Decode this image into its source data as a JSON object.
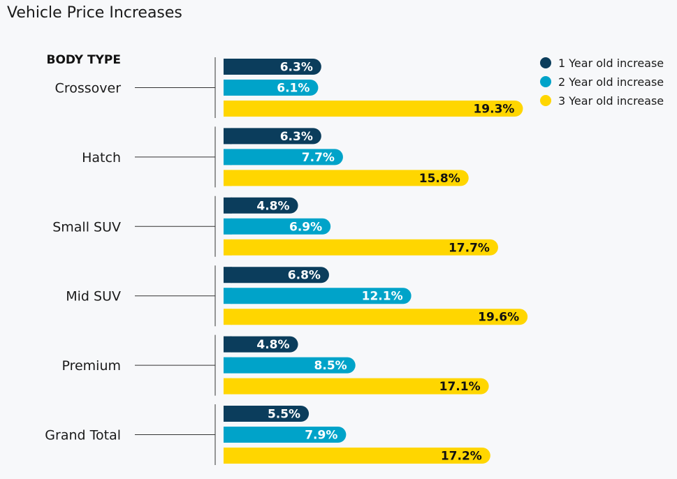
{
  "chart_data": {
    "type": "bar",
    "orientation": "horizontal",
    "title": "Vehicle Price Increases",
    "group_heading": "BODY TYPE",
    "categories": [
      "Crossover",
      "Hatch",
      "Small SUV",
      "Mid SUV",
      "Premium",
      "Grand Total"
    ],
    "series": [
      {
        "name": "1 Year old increase",
        "color": "#0b3d5c",
        "label_color": "#ffffff",
        "values": [
          6.3,
          6.3,
          4.8,
          6.8,
          4.8,
          5.5
        ],
        "labels": [
          "6.3%",
          "6.3%",
          "4.8%",
          "6.8%",
          "4.8%",
          "5.5%"
        ]
      },
      {
        "name": "2 Year old increase",
        "color": "#00a3c9",
        "label_color": "#ffffff",
        "values": [
          6.1,
          7.7,
          6.9,
          12.1,
          8.5,
          7.9
        ],
        "labels": [
          "6.1%",
          "7.7%",
          "6.9%",
          "12.1%",
          "8.5%",
          "7.9%"
        ]
      },
      {
        "name": "3 Year old increase",
        "color": "#ffd600",
        "label_color": "#111111",
        "values": [
          19.3,
          15.8,
          17.7,
          19.6,
          17.1,
          17.2
        ],
        "labels": [
          "19.3%",
          "15.8%",
          "17.7%",
          "19.6%",
          "17.1%",
          "17.2%"
        ]
      }
    ],
    "value_unit": "%",
    "legend_position": "top-right",
    "grid": false
  }
}
